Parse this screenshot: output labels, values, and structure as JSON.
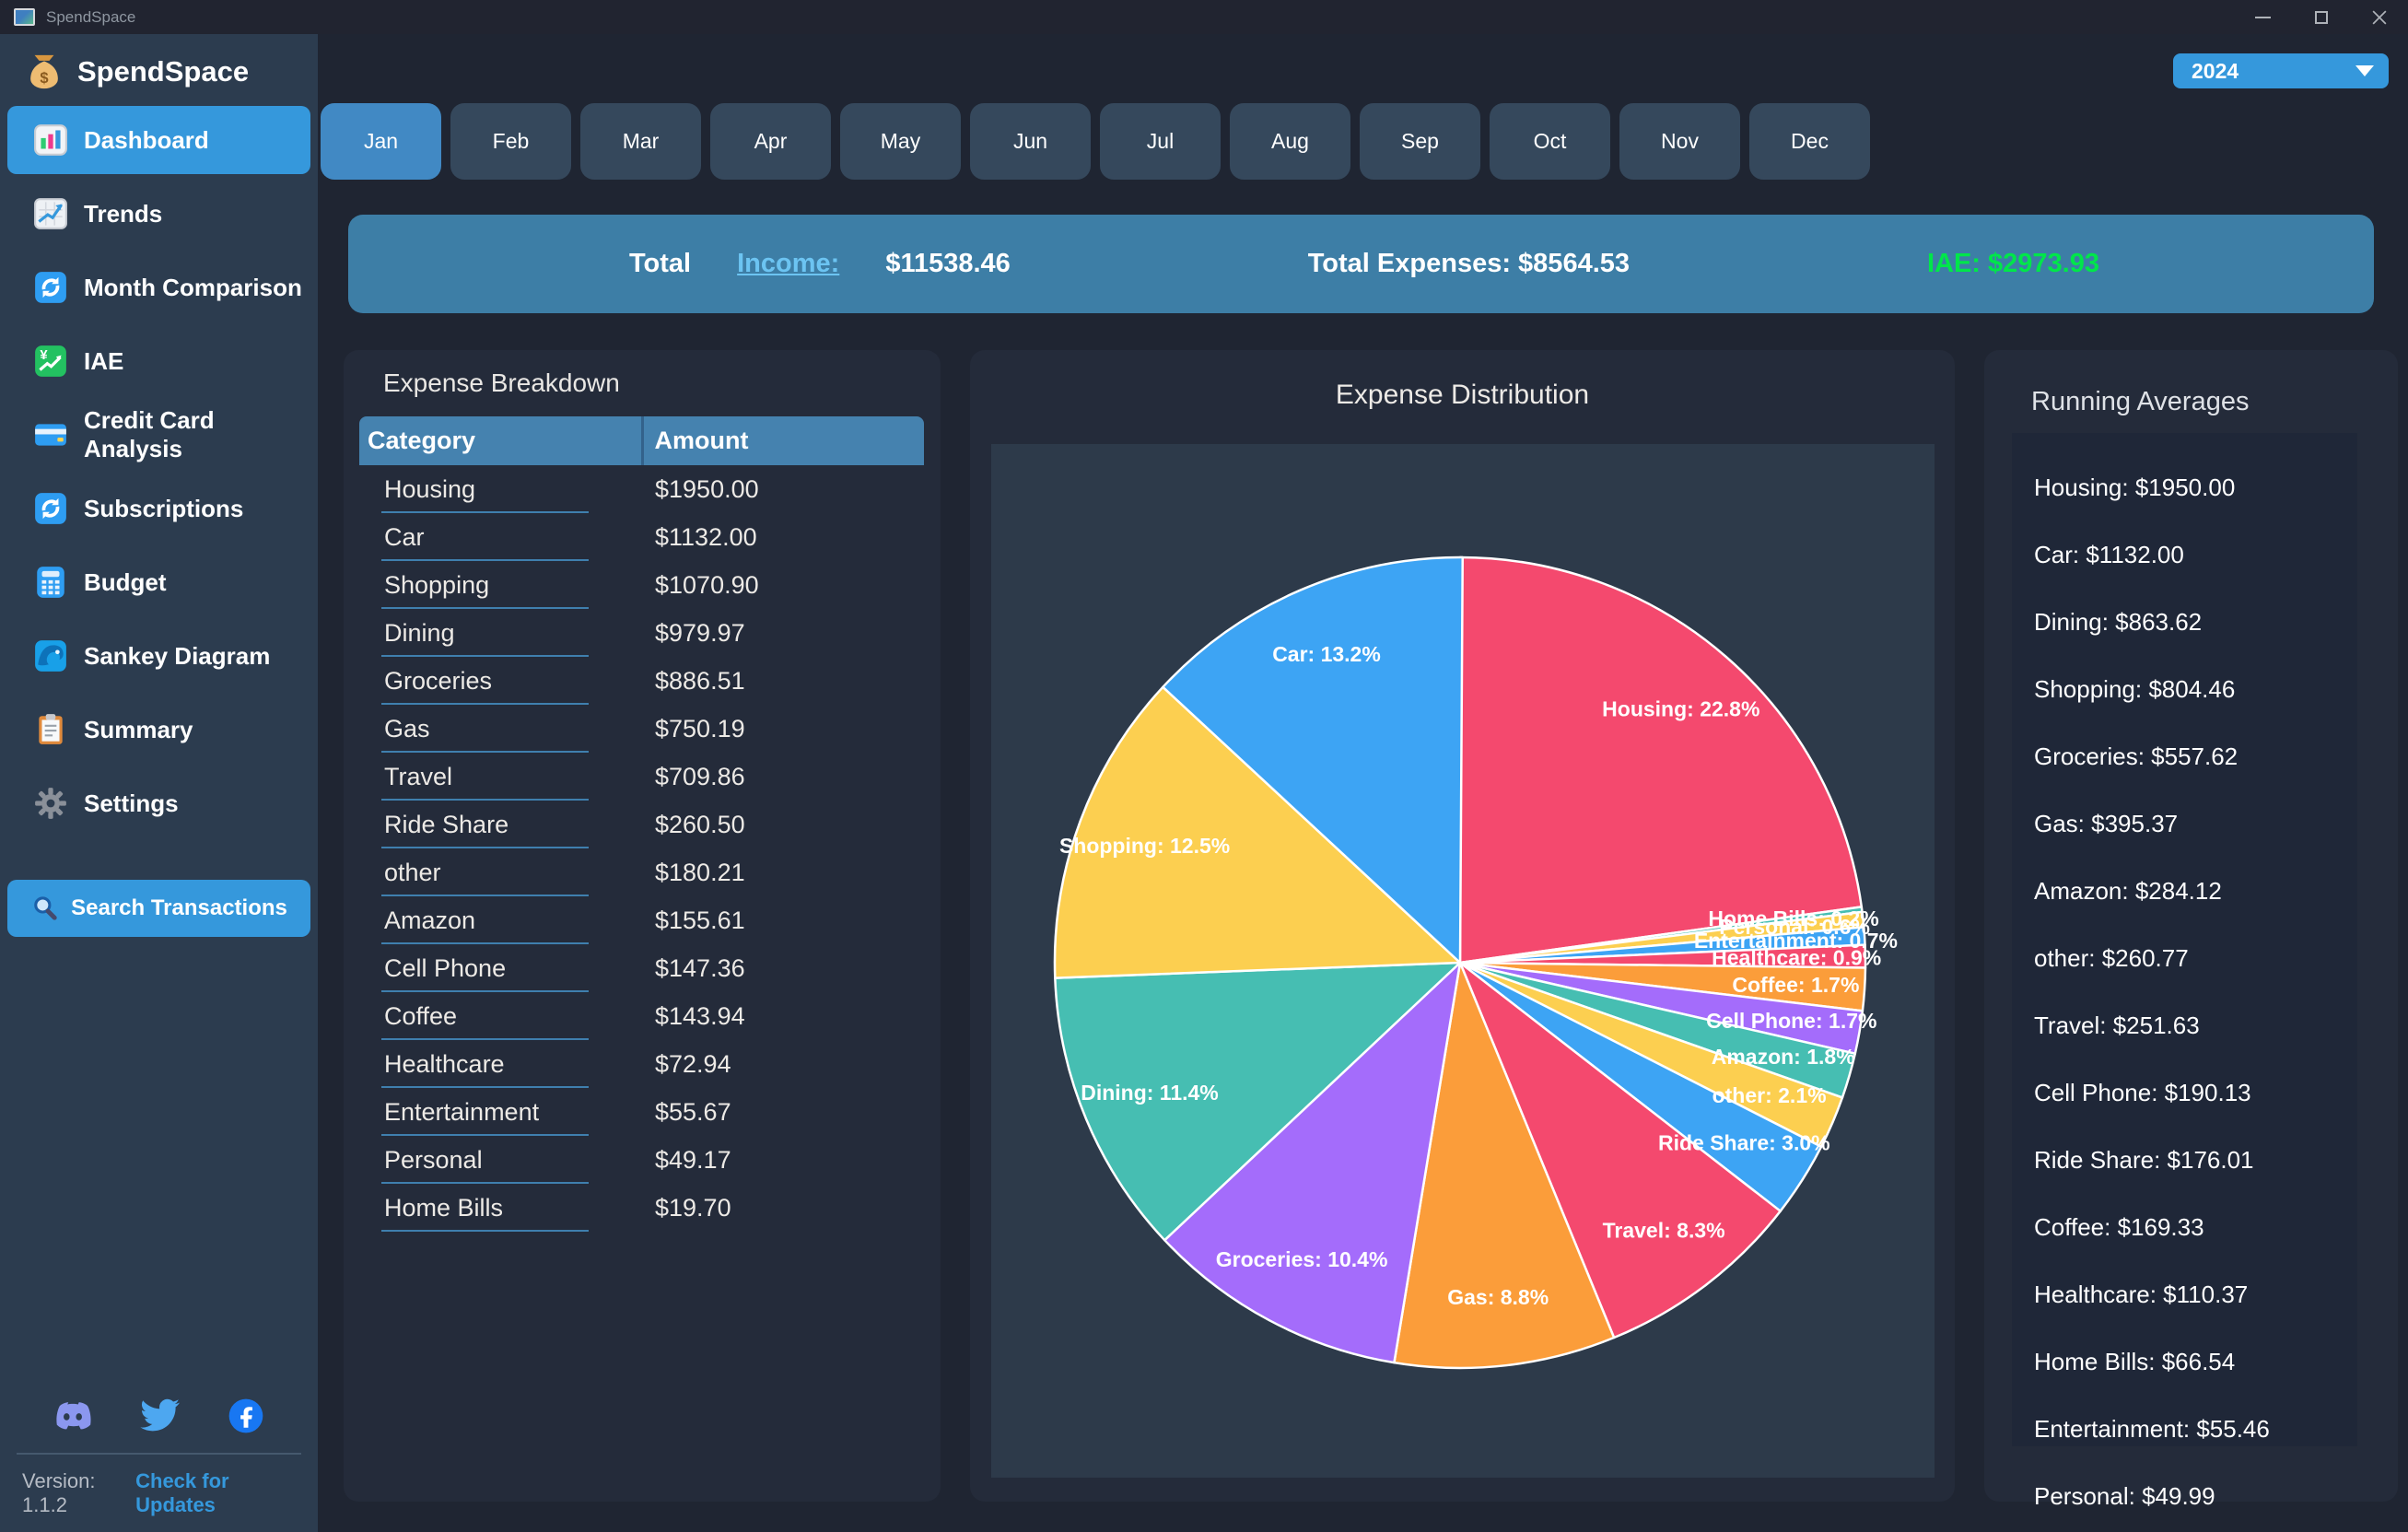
{
  "titlebar": {
    "title": "SpendSpace",
    "window_controls": [
      "minimize",
      "maximize",
      "close"
    ]
  },
  "sidebar": {
    "logo_icon": "money-bag",
    "logo_text": "SpendSpace",
    "items": [
      {
        "icon": "bar-chart",
        "label": "Dashboard",
        "active": true
      },
      {
        "icon": "trend-chart",
        "label": "Trends"
      },
      {
        "icon": "sync-arrows",
        "label": "Month Comparison"
      },
      {
        "icon": "yen-chart",
        "label": "IAE"
      },
      {
        "icon": "credit-card",
        "label": "Credit Card Analysis"
      },
      {
        "icon": "sync-arrows",
        "label": "Subscriptions"
      },
      {
        "icon": "number-pad",
        "label": "Budget"
      },
      {
        "icon": "water-wave",
        "label": "Sankey Diagram"
      },
      {
        "icon": "clipboard",
        "label": "Summary"
      },
      {
        "icon": "gear",
        "label": "Settings"
      }
    ],
    "search_button_label": "Search Transactions",
    "social_icons": [
      "discord",
      "twitter",
      "facebook"
    ],
    "version_text": "Version: 1.1.2",
    "check_updates_label": "Check for Updates"
  },
  "header": {
    "year": "2024",
    "months": [
      "Jan",
      "Feb",
      "Mar",
      "Apr",
      "May",
      "Jun",
      "Jul",
      "Aug",
      "Sep",
      "Oct",
      "Nov",
      "Dec"
    ],
    "active_month": "Jan"
  },
  "summary": {
    "total_label": "Total",
    "income_link": "Income:",
    "income_value": "$11538.46",
    "expenses_text": "Total Expenses: $8564.53",
    "iae_text": "IAE: $2973.93",
    "iae_color": "#00e64a"
  },
  "breakdown": {
    "title": "Expense Breakdown",
    "columns": [
      "Category",
      "Amount"
    ],
    "rows": [
      [
        "Housing",
        "$1950.00"
      ],
      [
        "Car",
        "$1132.00"
      ],
      [
        "Shopping",
        "$1070.90"
      ],
      [
        "Dining",
        "$979.97"
      ],
      [
        "Groceries",
        "$886.51"
      ],
      [
        "Gas",
        "$750.19"
      ],
      [
        "Travel",
        "$709.86"
      ],
      [
        "Ride Share",
        "$260.50"
      ],
      [
        "other",
        "$180.21"
      ],
      [
        "Amazon",
        "$155.61"
      ],
      [
        "Cell Phone",
        "$147.36"
      ],
      [
        "Coffee",
        "$143.94"
      ],
      [
        "Healthcare",
        "$72.94"
      ],
      [
        "Entertainment",
        "$55.67"
      ],
      [
        "Personal",
        "$49.17"
      ],
      [
        "Home Bills",
        "$19.70"
      ]
    ]
  },
  "chart_data": {
    "type": "pie",
    "title": "Expense Distribution",
    "direction": "clockwise",
    "start_angle_deg": 0,
    "label_radius_fraction": 0.83,
    "palette": [
      "#f4496e",
      "#3da4f4",
      "#fccf50",
      "#46beb2",
      "#a46cfb",
      "#fb9d3a"
    ],
    "slices": [
      {
        "label": "Housing",
        "pct": 22.8,
        "color": "#f4496e"
      },
      {
        "label": "Home Bills",
        "pct": 0.2,
        "color": "#46beb2"
      },
      {
        "label": "Personal",
        "pct": 0.6,
        "color": "#fccf50"
      },
      {
        "label": "Entertainment",
        "pct": 0.7,
        "color": "#3da4f4"
      },
      {
        "label": "Healthcare",
        "pct": 0.9,
        "color": "#f4496e"
      },
      {
        "label": "Coffee",
        "pct": 1.7,
        "color": "#fb9d3a"
      },
      {
        "label": "Cell Phone",
        "pct": 1.7,
        "color": "#a46cfb"
      },
      {
        "label": "Amazon",
        "pct": 1.8,
        "color": "#46beb2"
      },
      {
        "label": "other",
        "pct": 2.1,
        "color": "#fccf50"
      },
      {
        "label": "Ride Share",
        "pct": 3.0,
        "color": "#3da4f4"
      },
      {
        "label": "Travel",
        "pct": 8.3,
        "color": "#f4496e"
      },
      {
        "label": "Gas",
        "pct": 8.8,
        "color": "#fb9d3a"
      },
      {
        "label": "Groceries",
        "pct": 10.4,
        "color": "#a46cfb"
      },
      {
        "label": "Dining",
        "pct": 11.4,
        "color": "#46beb2"
      },
      {
        "label": "Shopping",
        "pct": 12.5,
        "color": "#fccf50"
      },
      {
        "label": "Car",
        "pct": 13.2,
        "color": "#3da4f4"
      }
    ]
  },
  "averages": {
    "title": "Running Averages",
    "items": [
      "Housing: $1950.00",
      "Car: $1132.00",
      "Dining: $863.62",
      "Shopping: $804.46",
      "Groceries: $557.62",
      "Gas: $395.37",
      "Amazon: $284.12",
      "other: $260.77",
      "Travel: $251.63",
      "Cell Phone: $190.13",
      "Ride Share: $176.01",
      "Coffee: $169.33",
      "Healthcare: $110.37",
      "Home Bills: $66.54",
      "Entertainment: $55.46",
      "Personal: $49.99"
    ]
  }
}
